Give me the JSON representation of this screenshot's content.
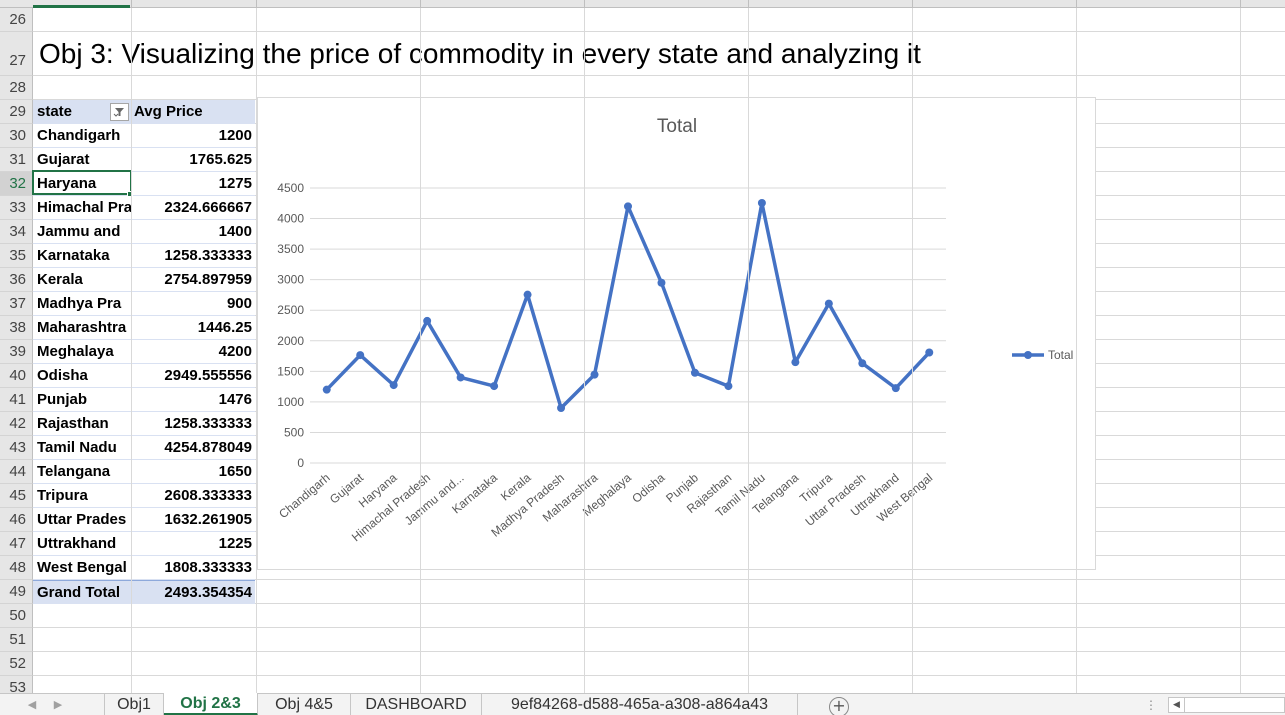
{
  "sheet": {
    "title": "Obj 3: Visualizing the price of commodity in every state and analyzing it",
    "row_numbers": [
      "26",
      "27",
      "28",
      "29",
      "30",
      "31",
      "32",
      "33",
      "34",
      "35",
      "36",
      "37",
      "38",
      "39",
      "40",
      "41",
      "42",
      "43",
      "44",
      "45",
      "46",
      "47",
      "48",
      "49",
      "50",
      "51",
      "52",
      "53"
    ],
    "active_row": "32"
  },
  "pivot": {
    "header_state": "state",
    "header_price": "Avg Price",
    "rows": [
      {
        "state": "Chandigarh",
        "price": "1200"
      },
      {
        "state": "Gujarat",
        "price": "1765.625"
      },
      {
        "state": "Haryana",
        "price": "1275"
      },
      {
        "state": "Himachal Pra",
        "price": "2324.666667"
      },
      {
        "state": "Jammu and",
        "price": "1400"
      },
      {
        "state": "Karnataka",
        "price": "1258.333333"
      },
      {
        "state": "Kerala",
        "price": "2754.897959"
      },
      {
        "state": "Madhya Pra",
        "price": "900"
      },
      {
        "state": "Maharashtra",
        "price": "1446.25"
      },
      {
        "state": "Meghalaya",
        "price": "4200"
      },
      {
        "state": "Odisha",
        "price": "2949.555556"
      },
      {
        "state": "Punjab",
        "price": "1476"
      },
      {
        "state": "Rajasthan",
        "price": "1258.333333"
      },
      {
        "state": "Tamil Nadu",
        "price": "4254.878049"
      },
      {
        "state": "Telangana",
        "price": "1650"
      },
      {
        "state": "Tripura",
        "price": "2608.333333"
      },
      {
        "state": "Uttar Prades",
        "price": "1632.261905"
      },
      {
        "state": "Uttrakhand",
        "price": "1225"
      },
      {
        "state": "West Bengal",
        "price": "1808.333333"
      }
    ],
    "total_label": "Grand Total",
    "total_value": "2493.354354"
  },
  "chart_data": {
    "type": "line",
    "title": "Total",
    "categories": [
      "Chandigarh",
      "Gujarat",
      "Haryana",
      "Himachal Pradesh",
      "Jammu and...",
      "Karnataka",
      "Kerala",
      "Madhya Pradesh",
      "Maharashtra",
      "Meghalaya",
      "Odisha",
      "Punjab",
      "Rajasthan",
      "Tamil Nadu",
      "Telangana",
      "Tripura",
      "Uttar Pradesh",
      "Uttrakhand",
      "West Bengal"
    ],
    "series": [
      {
        "name": "Total",
        "values": [
          1200,
          1765.625,
          1275,
          2324.666667,
          1400,
          1258.333333,
          2754.897959,
          900,
          1446.25,
          4200,
          2949.555556,
          1476,
          1258.333333,
          4254.878049,
          1650,
          2608.333333,
          1632.261905,
          1225,
          1808.333333
        ]
      }
    ],
    "ylim": [
      0,
      4500
    ],
    "yticks": [
      0,
      500,
      1000,
      1500,
      2000,
      2500,
      3000,
      3500,
      4000,
      4500
    ],
    "grid": true,
    "legend": "right",
    "line_color": "#4472c4"
  },
  "tabs": {
    "items": [
      {
        "label": "Obj1",
        "active": false
      },
      {
        "label": "Obj 2&3",
        "active": true
      },
      {
        "label": "Obj 4&5",
        "active": false
      },
      {
        "label": "DASHBOARD",
        "active": false
      },
      {
        "label": "9ef84268-d588-465a-a308-a864a43",
        "active": false
      }
    ],
    "add_symbol": "+",
    "nav_prev": "◀",
    "nav_next": "▶"
  }
}
